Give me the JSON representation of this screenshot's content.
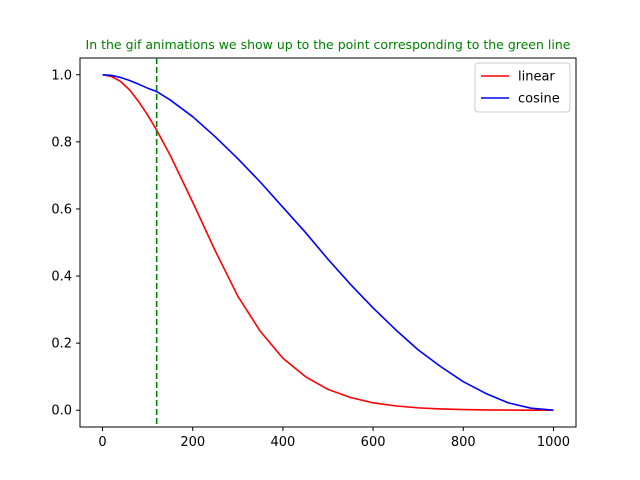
{
  "chart_data": {
    "type": "line",
    "title": "In the gif animations we show up to the point corresponding to the green line",
    "title_color": "#008000",
    "xlabel": "",
    "ylabel": "",
    "xlim": [
      -50,
      1050
    ],
    "ylim": [
      -0.05,
      1.05
    ],
    "xticks": [
      0,
      200,
      400,
      600,
      800,
      1000
    ],
    "yticks": [
      0.0,
      0.2,
      0.4,
      0.6,
      0.8,
      1.0
    ],
    "xtick_labels": [
      "0",
      "200",
      "400",
      "600",
      "800",
      "1000"
    ],
    "ytick_labels": [
      "0.0",
      "0.2",
      "0.4",
      "0.6",
      "0.8",
      "1.0"
    ],
    "grid": false,
    "legend_position": "top-right",
    "vline": {
      "x": 120,
      "color": "#008000",
      "style": "dashed"
    },
    "x": [
      0,
      20,
      40,
      60,
      80,
      100,
      120,
      150,
      200,
      250,
      300,
      350,
      400,
      450,
      500,
      550,
      600,
      650,
      700,
      750,
      800,
      850,
      900,
      950,
      1000
    ],
    "series": [
      {
        "name": "linear",
        "color": "#ff0000",
        "values": [
          1.0,
          0.995,
          0.98,
          0.955,
          0.92,
          0.88,
          0.835,
          0.76,
          0.62,
          0.475,
          0.34,
          0.235,
          0.155,
          0.1,
          0.062,
          0.038,
          0.022,
          0.013,
          0.007,
          0.004,
          0.002,
          0.001,
          0.0005,
          0.0002,
          0.0
        ]
      },
      {
        "name": "cosine",
        "color": "#0000ff",
        "values": [
          1.0,
          0.998,
          0.992,
          0.983,
          0.972,
          0.96,
          0.95,
          0.925,
          0.875,
          0.815,
          0.75,
          0.68,
          0.605,
          0.53,
          0.45,
          0.375,
          0.305,
          0.24,
          0.18,
          0.13,
          0.085,
          0.05,
          0.022,
          0.006,
          0.0
        ]
      }
    ]
  }
}
